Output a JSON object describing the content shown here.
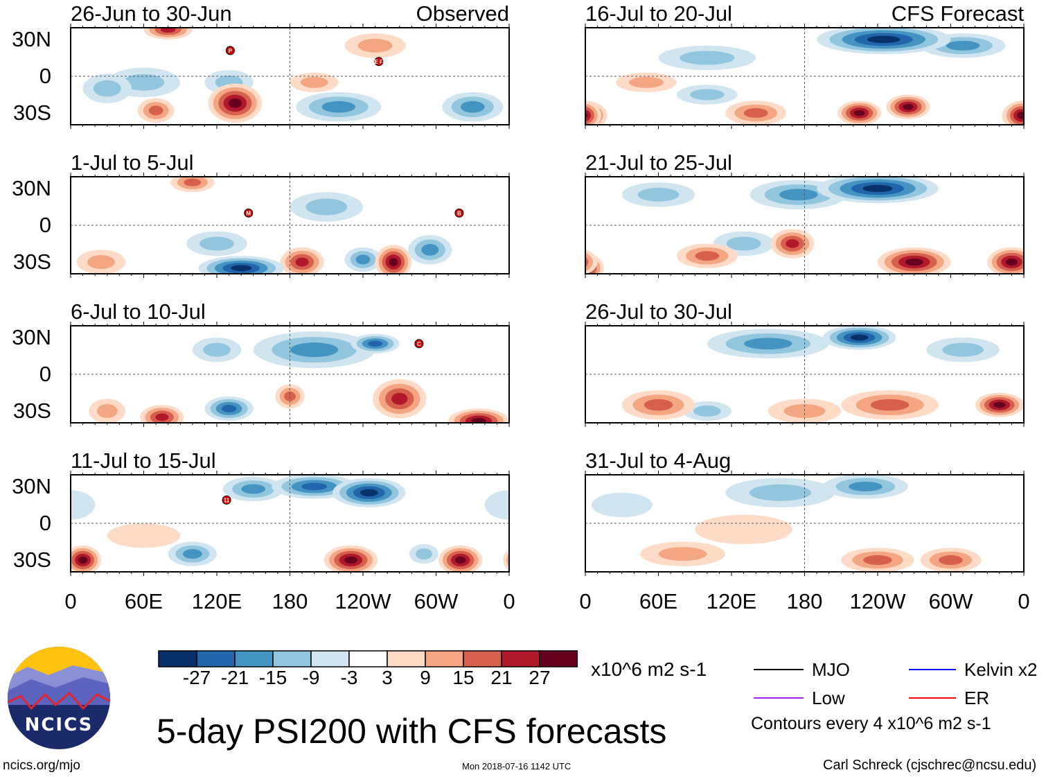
{
  "panels": [
    {
      "title": "26-Jun to 30-Jun",
      "tag": "Observed",
      "markers": [
        {
          "label": "P",
          "lon": 131,
          "lat": 21
        },
        {
          "label": "E F",
          "lon": 253,
          "lat": 12
        }
      ]
    },
    {
      "title": "1-Jul to 5-Jul",
      "markers": [
        {
          "label": "M",
          "lon": 146,
          "lat": 10
        },
        {
          "label": "B",
          "lon": 319,
          "lat": 10
        }
      ]
    },
    {
      "title": "6-Jul to 10-Jul",
      "markers": [
        {
          "label": "C",
          "lon": 286,
          "lat": 25
        }
      ]
    },
    {
      "title": "11-Jul to 15-Jul",
      "markers": [
        {
          "label": "11",
          "lon": 128,
          "lat": 19
        }
      ]
    },
    {
      "title": "16-Jul to 20-Jul",
      "tag": "CFS Forecast",
      "markers": []
    },
    {
      "title": "21-Jul to 25-Jul",
      "markers": []
    },
    {
      "title": "26-Jul to 30-Jul",
      "markers": []
    },
    {
      "title": "31-Jul to 4-Aug",
      "markers": []
    }
  ],
  "lat_labels": [
    "30N",
    "0",
    "30S"
  ],
  "lon_labels": [
    "0",
    "60E",
    "120E",
    "180",
    "120W",
    "60W",
    "0"
  ],
  "colorbar": {
    "labels": [
      "-27",
      "-21",
      "-15",
      "-9",
      "-3",
      "3",
      "9",
      "15",
      "21",
      "27"
    ],
    "colors": [
      "#08306b",
      "#2166ac",
      "#4393c3",
      "#92c5de",
      "#d1e5f0",
      "#ffffff",
      "#fddbc7",
      "#f4a582",
      "#d6604d",
      "#b2182b",
      "#67001f"
    ],
    "units": "x10^6 m2 s-1"
  },
  "legend": {
    "mjo": "MJO",
    "kelvin": "Kelvin x2",
    "low": "Low",
    "er": "ER",
    "mjo_color": "#000000",
    "kelvin_color": "#0000ff",
    "low_color": "#a020f0",
    "er_color": "#ff0000",
    "contours": "Contours every 4 x10^6 m2 s-1"
  },
  "title": "5-day PSI200 with CFS forecasts",
  "logo_text": "NCICS",
  "footer": {
    "url": "ncics.org/mjo",
    "timestamp": "Mon 2018-07-16 1142 UTC",
    "author": "Carl Schreck (cjschrec@ncsu.edu)"
  }
}
